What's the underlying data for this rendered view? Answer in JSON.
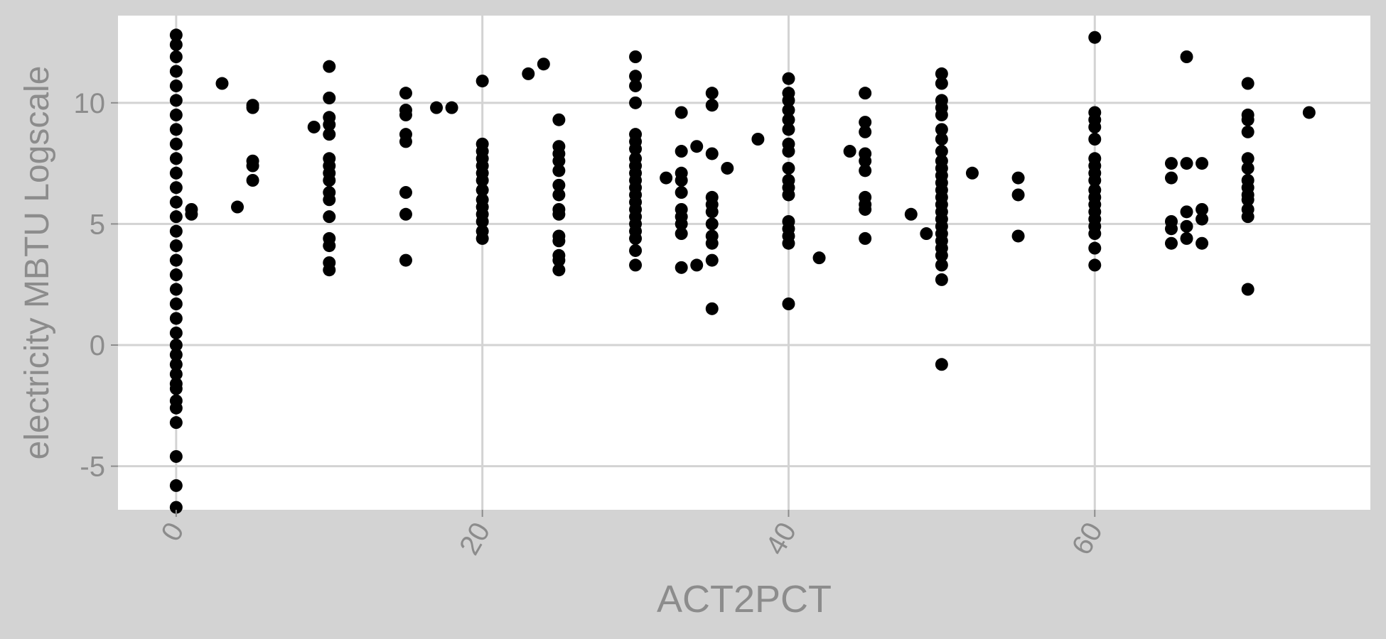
{
  "chart_data": {
    "type": "scatter",
    "title": "",
    "xlabel": "ACT2PCT",
    "ylabel": "electricity MBTU Logscale",
    "xlim": [
      -3.8,
      78
    ],
    "ylim": [
      -6.8,
      13.6
    ],
    "xticks": [
      0,
      20,
      40,
      60
    ],
    "yticks": [
      -5,
      0,
      5,
      10
    ],
    "grid": true,
    "colors": {
      "background": "#d3d3d3",
      "panel": "#ffffff",
      "grid": "#d3d3d3",
      "point": "#000000",
      "text": "#8c8c8c"
    },
    "columns": [
      {
        "x": 0,
        "y": [
          12.8,
          12.4,
          11.9,
          11.3,
          10.7,
          10.1,
          9.5,
          8.9,
          8.3,
          7.7,
          7.1,
          6.5,
          5.9,
          5.3,
          4.7,
          4.1,
          3.5,
          2.9,
          2.3,
          1.7,
          1.1,
          0.5,
          0.0,
          -0.4,
          -0.8,
          -1.2,
          -1.6,
          -1.8,
          -2.3,
          -2.6,
          -3.2,
          -4.6,
          -5.8,
          -6.7
        ]
      },
      {
        "x": 1,
        "y": [
          5.4,
          5.6
        ]
      },
      {
        "x": 3,
        "y": [
          10.8
        ]
      },
      {
        "x": 4,
        "y": [
          5.7
        ]
      },
      {
        "x": 5,
        "y": [
          9.8,
          9.9,
          7.6,
          7.4,
          6.8
        ]
      },
      {
        "x": 9,
        "y": [
          9.0
        ]
      },
      {
        "x": 10,
        "y": [
          11.5,
          10.2,
          9.4,
          9.1,
          8.7,
          7.7,
          7.4,
          7.1,
          6.8,
          6.3,
          6.0,
          5.3,
          4.4,
          4.1,
          3.4,
          3.1
        ]
      },
      {
        "x": 15,
        "y": [
          10.4,
          9.7,
          9.5,
          8.7,
          8.4,
          6.3,
          5.4,
          3.5
        ]
      },
      {
        "x": 17,
        "y": [
          9.8
        ]
      },
      {
        "x": 18,
        "y": [
          9.8
        ]
      },
      {
        "x": 20,
        "y": [
          10.9,
          8.3,
          8.0,
          7.7,
          7.4,
          7.1,
          6.8,
          6.4,
          6.0,
          5.7,
          5.4,
          5.1,
          4.7,
          4.4
        ]
      },
      {
        "x": 23,
        "y": [
          11.2
        ]
      },
      {
        "x": 24,
        "y": [
          11.6
        ]
      },
      {
        "x": 25,
        "y": [
          9.3,
          8.2,
          7.9,
          7.6,
          7.2,
          6.6,
          6.2,
          5.6,
          5.4,
          4.5,
          4.3,
          3.7,
          3.5,
          3.1
        ]
      },
      {
        "x": 30,
        "y": [
          11.9,
          11.1,
          10.7,
          10.0,
          8.7,
          8.4,
          8.1,
          7.7,
          7.4,
          7.1,
          6.8,
          6.5,
          6.2,
          5.9,
          5.6,
          5.3,
          5.0,
          4.7,
          4.4,
          3.9,
          3.3
        ]
      },
      {
        "x": 32,
        "y": [
          6.9
        ]
      },
      {
        "x": 33,
        "y": [
          9.6,
          8.0,
          7.1,
          6.8,
          6.3,
          5.6,
          5.3,
          5.0,
          4.6,
          3.2
        ]
      },
      {
        "x": 34,
        "y": [
          8.2,
          3.3
        ]
      },
      {
        "x": 35,
        "y": [
          10.4,
          9.9,
          7.9,
          6.1,
          5.8,
          5.5,
          5.0,
          4.5,
          4.2,
          3.5,
          1.5
        ]
      },
      {
        "x": 36,
        "y": [
          7.3
        ]
      },
      {
        "x": 38,
        "y": [
          8.5
        ]
      },
      {
        "x": 40,
        "y": [
          11.0,
          10.4,
          10.1,
          9.7,
          9.3,
          8.9,
          8.3,
          8.0,
          7.3,
          6.8,
          6.5,
          6.2,
          5.1,
          4.8,
          4.5,
          4.2,
          1.7
        ]
      },
      {
        "x": 42,
        "y": [
          3.6
        ]
      },
      {
        "x": 44,
        "y": [
          8.0
        ]
      },
      {
        "x": 45,
        "y": [
          10.4,
          9.2,
          8.8,
          7.9,
          7.6,
          7.2,
          6.1,
          5.8,
          5.6,
          4.4
        ]
      },
      {
        "x": 48,
        "y": [
          5.4
        ]
      },
      {
        "x": 49,
        "y": [
          4.6
        ]
      },
      {
        "x": 50,
        "y": [
          11.2,
          10.8,
          10.1,
          9.8,
          9.5,
          8.9,
          8.5,
          8.0,
          7.6,
          7.3,
          7.0,
          6.7,
          6.4,
          6.1,
          5.8,
          5.5,
          5.2,
          4.9,
          4.6,
          4.3,
          4.0,
          3.7,
          3.3,
          2.7,
          -0.8
        ]
      },
      {
        "x": 52,
        "y": [
          7.1
        ]
      },
      {
        "x": 55,
        "y": [
          6.9,
          6.2,
          4.5
        ]
      },
      {
        "x": 60,
        "y": [
          12.7,
          9.6,
          9.3,
          9.0,
          8.5,
          7.7,
          7.4,
          7.1,
          6.8,
          6.4,
          6.1,
          5.8,
          5.5,
          5.2,
          4.9,
          4.6,
          4.0,
          3.3
        ]
      },
      {
        "x": 65,
        "y": [
          7.5,
          6.9,
          5.1,
          4.8,
          4.2
        ]
      },
      {
        "x": 66,
        "y": [
          11.9,
          7.5,
          5.5,
          4.9,
          4.4
        ]
      },
      {
        "x": 67,
        "y": [
          7.5,
          5.6,
          5.2,
          4.2
        ]
      },
      {
        "x": 70,
        "y": [
          10.8,
          9.5,
          9.3,
          8.8,
          7.7,
          7.3,
          6.8,
          6.5,
          6.2,
          6.0,
          5.6,
          5.3,
          2.3
        ]
      },
      {
        "x": 74,
        "y": [
          9.6
        ]
      }
    ]
  }
}
